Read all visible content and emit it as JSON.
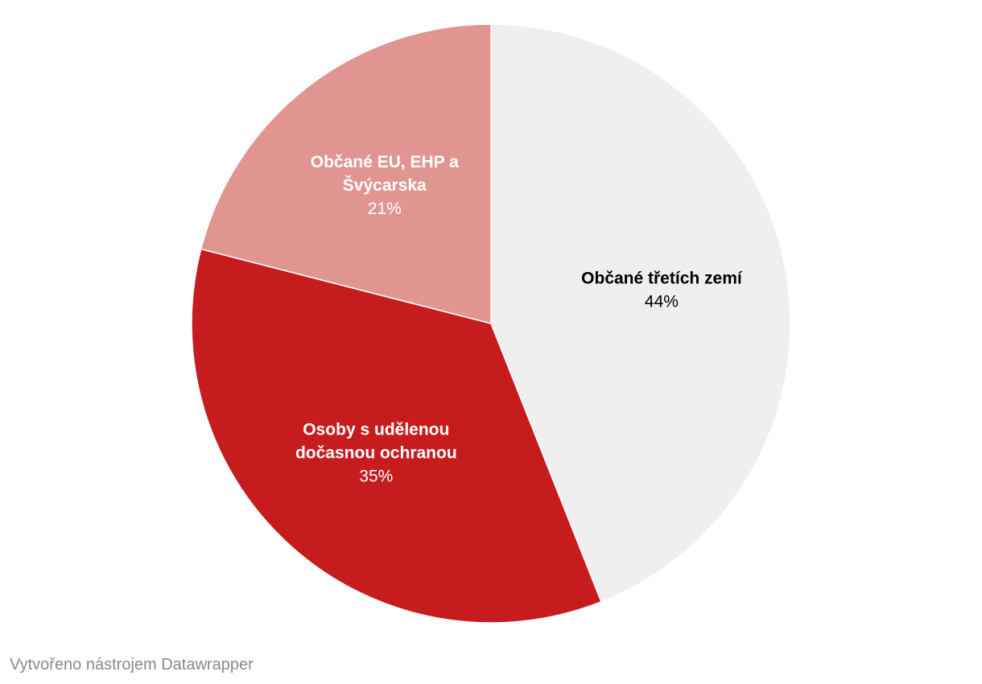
{
  "chart_data": {
    "type": "pie",
    "slices": [
      {
        "label_lines": [
          "Občané třetích zemí"
        ],
        "value": 44,
        "value_label": "44%",
        "color": "#efefef",
        "text_color": "#000000"
      },
      {
        "label_lines": [
          "Osoby s udělenou",
          "dočasnou ochranou"
        ],
        "value": 35,
        "value_label": "35%",
        "color": "#c71c1e",
        "text_color": "#ffffff"
      },
      {
        "label_lines": [
          "Občané EU, EHP a",
          "Švýcarska"
        ],
        "value": 21,
        "value_label": "21%",
        "color": "#e19590",
        "text_color": "#ffffff"
      }
    ],
    "start_angle": "12 o'clock",
    "direction": "clockwise"
  },
  "footer": {
    "credit": "Vytvořeno nástrojem Datawrapper"
  }
}
